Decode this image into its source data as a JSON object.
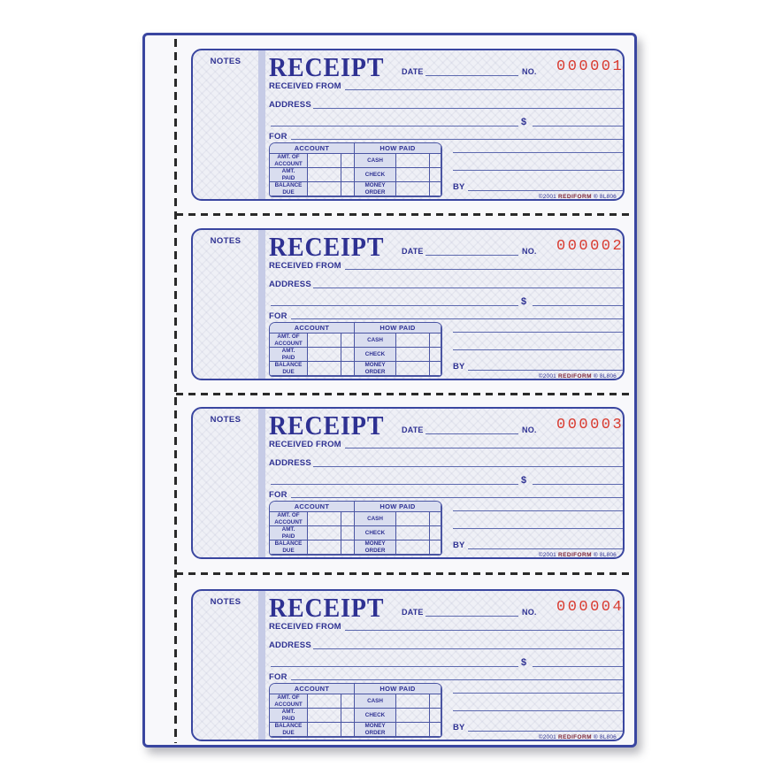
{
  "colors": {
    "ink_navy": "#2e3192",
    "serial_red": "#d93a2f",
    "brand_red": "#7d2436",
    "line_blue": "#5c68ae"
  },
  "labels": {
    "notes": "NOTES",
    "title": "RECEIPT",
    "date": "DATE",
    "number": "NO.",
    "received_from": "RECEIVED FROM",
    "address": "ADDRESS",
    "dollar_sign": "$",
    "for": "FOR",
    "by": "BY"
  },
  "table": {
    "account_header": "ACCOUNT",
    "how_paid_header": "HOW PAID",
    "rows": [
      {
        "account": "AMT. OF\nACCOUNT",
        "how_paid": "CASH"
      },
      {
        "account": "AMT.\nPAID",
        "how_paid": "CHECK"
      },
      {
        "account": "BALANCE\nDUE",
        "how_paid": "MONEY\nORDER"
      }
    ]
  },
  "footer": {
    "copyright": "©2001",
    "brand": "REDIFORM",
    "registered": "®",
    "form_number": "8L806"
  },
  "receipts": [
    {
      "number": "000001"
    },
    {
      "number": "000002"
    },
    {
      "number": "000003"
    },
    {
      "number": "000004"
    }
  ]
}
